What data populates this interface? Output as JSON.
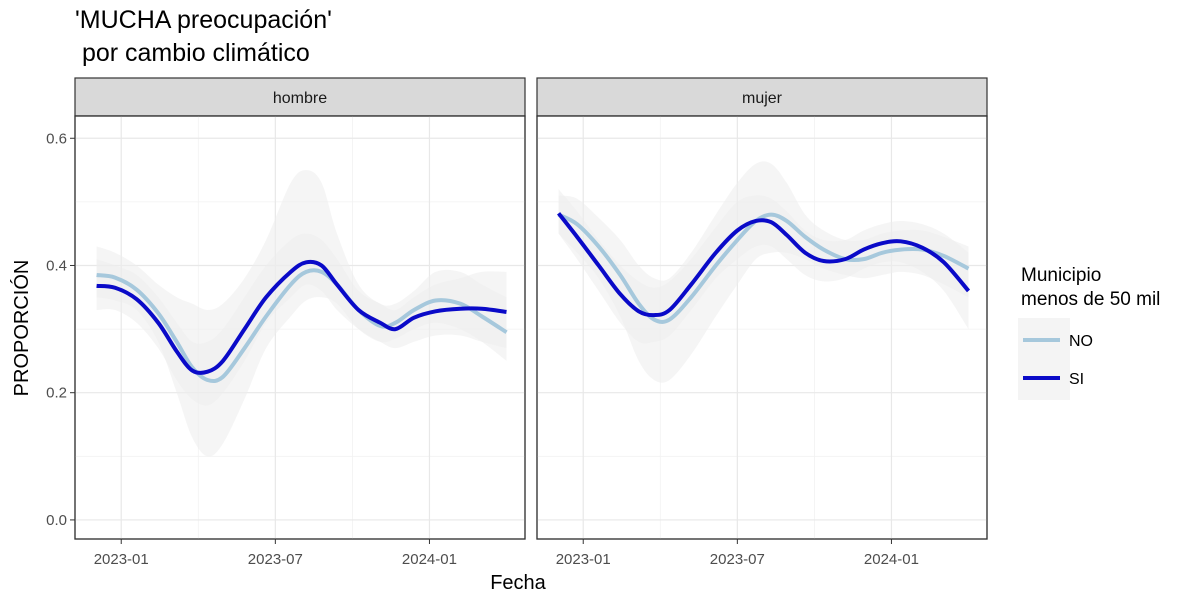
{
  "chart_data": {
    "type": "line",
    "title_lines": [
      "'MUCHA preocupación'",
      " por cambio climático"
    ],
    "xlabel": "Fecha",
    "ylabel": "PROPORCIÓN",
    "x_domain": [
      2022.85,
      2024.31
    ],
    "y_domain": [
      -0.03,
      0.635
    ],
    "y_ticks": [
      0.0,
      0.2,
      0.4,
      0.6
    ],
    "y_tick_labels": [
      "0.0",
      "0.2",
      "0.4",
      "0.6"
    ],
    "x_ticks": [
      2023.0,
      2023.5,
      2024.0
    ],
    "x_tick_labels": [
      "2023-01",
      "2023-07",
      "2024-01"
    ],
    "grid": true,
    "legend": {
      "title_lines": [
        "Municipio",
        "menos de 50 mil"
      ],
      "position": "right",
      "entries": [
        {
          "label": "NO",
          "color": "#a6c8dc"
        },
        {
          "label": "SI",
          "color": "#0a0ac8"
        }
      ]
    },
    "ribbon_color": "#ececec",
    "facets": [
      {
        "label": "hombre",
        "series": [
          {
            "name": "NO",
            "color": "#a6c8dc",
            "x": [
              2022.92,
              2022.98,
              2023.05,
              2023.12,
              2023.18,
              2023.23,
              2023.28,
              2023.33,
              2023.4,
              2023.47,
              2023.55,
              2023.6,
              2023.65,
              2023.7,
              2023.77,
              2023.84,
              2023.89,
              2023.95,
              2024.02,
              2024.1,
              2024.17,
              2024.25
            ],
            "values": [
              0.385,
              0.381,
              0.362,
              0.325,
              0.28,
              0.24,
              0.22,
              0.225,
              0.27,
              0.32,
              0.37,
              0.39,
              0.39,
              0.37,
              0.33,
              0.305,
              0.31,
              0.33,
              0.345,
              0.34,
              0.32,
              0.295
            ],
            "band_low": [
              0.35,
              0.345,
              0.33,
              0.28,
              0.2,
              0.13,
              0.1,
              0.12,
              0.19,
              0.27,
              0.32,
              0.345,
              0.35,
              0.34,
              0.3,
              0.28,
              0.285,
              0.3,
              0.31,
              0.3,
              0.28,
              0.25
            ],
            "band_high": [
              0.43,
              0.42,
              0.4,
              0.37,
              0.35,
              0.34,
              0.33,
              0.34,
              0.38,
              0.44,
              0.53,
              0.55,
              0.53,
              0.45,
              0.37,
              0.34,
              0.34,
              0.36,
              0.39,
              0.39,
              0.37,
              0.35
            ]
          },
          {
            "name": "SI",
            "color": "#0a0ac8",
            "x": [
              2022.92,
              2022.98,
              2023.05,
              2023.12,
              2023.18,
              2023.23,
              2023.28,
              2023.33,
              2023.4,
              2023.47,
              2023.55,
              2023.6,
              2023.65,
              2023.7,
              2023.77,
              2023.84,
              2023.89,
              2023.95,
              2024.02,
              2024.1,
              2024.17,
              2024.25
            ],
            "values": [
              0.368,
              0.365,
              0.347,
              0.31,
              0.265,
              0.235,
              0.233,
              0.25,
              0.3,
              0.35,
              0.39,
              0.405,
              0.4,
              0.37,
              0.33,
              0.31,
              0.3,
              0.318,
              0.328,
              0.332,
              0.332,
              0.327
            ],
            "band_low": [
              0.33,
              0.33,
              0.31,
              0.27,
              0.22,
              0.19,
              0.18,
              0.2,
              0.25,
              0.31,
              0.35,
              0.37,
              0.36,
              0.33,
              0.3,
              0.28,
              0.27,
              0.28,
              0.29,
              0.29,
              0.28,
              0.27
            ],
            "band_high": [
              0.41,
              0.4,
              0.385,
              0.35,
              0.31,
              0.28,
              0.28,
              0.3,
              0.35,
              0.4,
              0.44,
              0.45,
              0.44,
              0.41,
              0.36,
              0.34,
              0.33,
              0.35,
              0.37,
              0.38,
              0.39,
              0.39
            ]
          }
        ]
      },
      {
        "label": "mujer",
        "series": [
          {
            "name": "NO",
            "color": "#a6c8dc",
            "x": [
              2022.92,
              2022.98,
              2023.05,
              2023.12,
              2023.18,
              2023.23,
              2023.28,
              2023.35,
              2023.43,
              2023.5,
              2023.56,
              2023.61,
              2023.66,
              2023.72,
              2023.78,
              2023.85,
              2023.91,
              2023.97,
              2024.03,
              2024.1,
              2024.17,
              2024.25
            ],
            "values": [
              0.48,
              0.465,
              0.43,
              0.385,
              0.34,
              0.315,
              0.315,
              0.35,
              0.4,
              0.44,
              0.47,
              0.48,
              0.47,
              0.445,
              0.425,
              0.41,
              0.41,
              0.42,
              0.425,
              0.425,
              0.415,
              0.395
            ],
            "band_low": [
              0.45,
              0.42,
              0.38,
              0.32,
              0.25,
              0.22,
              0.22,
              0.26,
              0.32,
              0.37,
              0.41,
              0.42,
              0.42,
              0.41,
              0.395,
              0.385,
              0.38,
              0.385,
              0.39,
              0.385,
              0.37,
              0.35
            ],
            "band_high": [
              0.51,
              0.505,
              0.475,
              0.44,
              0.4,
              0.38,
              0.38,
              0.42,
              0.48,
              0.53,
              0.56,
              0.56,
              0.53,
              0.48,
              0.455,
              0.44,
              0.44,
              0.45,
              0.455,
              0.455,
              0.445,
              0.43
            ]
          },
          {
            "name": "SI",
            "color": "#0a0ac8",
            "x": [
              2022.92,
              2022.98,
              2023.05,
              2023.12,
              2023.18,
              2023.23,
              2023.28,
              2023.35,
              2023.43,
              2023.5,
              2023.56,
              2023.61,
              2023.66,
              2023.72,
              2023.78,
              2023.85,
              2023.91,
              2023.97,
              2024.03,
              2024.1,
              2024.17,
              2024.25
            ],
            "values": [
              0.482,
              0.445,
              0.4,
              0.355,
              0.328,
              0.322,
              0.33,
              0.37,
              0.42,
              0.455,
              0.47,
              0.468,
              0.448,
              0.42,
              0.407,
              0.41,
              0.425,
              0.435,
              0.438,
              0.428,
              0.405,
              0.36
            ],
            "band_low": [
              0.45,
              0.41,
              0.36,
              0.31,
              0.28,
              0.28,
              0.29,
              0.33,
              0.38,
              0.41,
              0.43,
              0.43,
              0.41,
              0.385,
              0.375,
              0.38,
              0.395,
              0.405,
              0.405,
              0.39,
              0.36,
              0.3
            ],
            "band_high": [
              0.52,
              0.485,
              0.44,
              0.4,
              0.375,
              0.365,
              0.375,
              0.41,
              0.46,
              0.5,
              0.51,
              0.505,
              0.485,
              0.455,
              0.44,
              0.44,
              0.455,
              0.465,
              0.47,
              0.465,
              0.45,
              0.42
            ]
          }
        ]
      }
    ]
  }
}
